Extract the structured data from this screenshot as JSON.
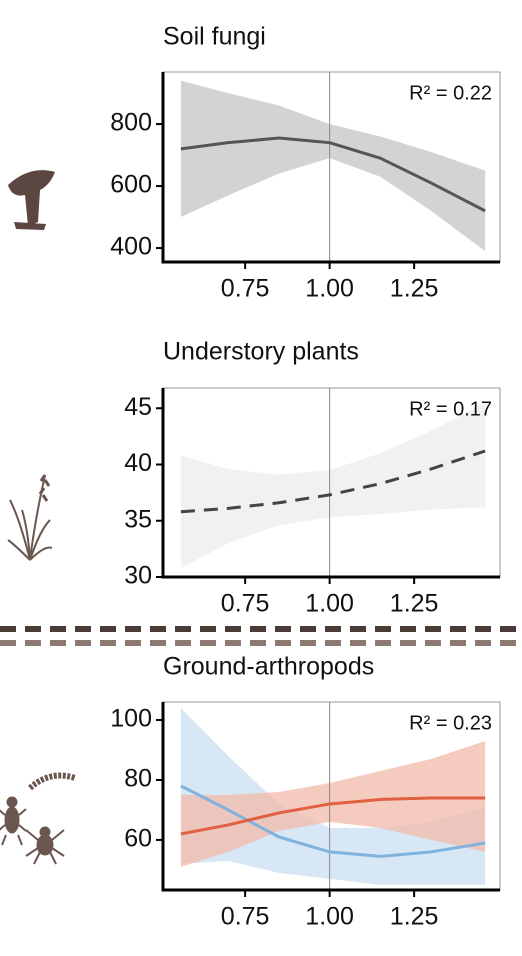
{
  "chart_data": [
    {
      "type": "line",
      "title": "Soil fungi",
      "annotation": "R² = 0.22",
      "vline": 1,
      "x": [
        0.56,
        0.7,
        0.85,
        1.0,
        1.15,
        1.3,
        1.46
      ],
      "xlim": [
        0.507,
        1.504
      ],
      "xticks": [
        0.75,
        {
          "value": 1,
          "label": "1.00"
        },
        1.25
      ],
      "ylim": [
        355,
        968
      ],
      "yticks": [
        400,
        600,
        800
      ],
      "series": [
        {
          "color": "#555555",
          "band_color": "#c4c4c4",
          "dash": false,
          "values": [
            720,
            740,
            755,
            740,
            690,
            610,
            520
          ],
          "lower": [
            500,
            570,
            640,
            690,
            630,
            520,
            390
          ],
          "upper": [
            940,
            900,
            860,
            800,
            760,
            710,
            650
          ]
        }
      ]
    },
    {
      "type": "line",
      "title": "Understory plants",
      "annotation": "R² = 0.17",
      "vline": 1,
      "x": [
        0.56,
        0.7,
        0.85,
        1.0,
        1.15,
        1.3,
        1.46
      ],
      "xlim": [
        0.507,
        1.504
      ],
      "xticks": [
        0.75,
        {
          "value": 1,
          "label": "1.00"
        },
        1.25
      ],
      "ylim": [
        30,
        46.8
      ],
      "yticks": [
        30,
        35,
        40,
        45
      ],
      "series": [
        {
          "color": "#444444",
          "band_color": "#ececec",
          "dash": true,
          "values": [
            35.8,
            36.1,
            36.6,
            37.3,
            38.3,
            39.6,
            41.2
          ],
          "lower": [
            30.8,
            33,
            34.6,
            35.3,
            35.6,
            36,
            36.2
          ],
          "upper": [
            40.8,
            39.6,
            39.1,
            39.5,
            41,
            43,
            45.5
          ]
        }
      ]
    },
    {
      "type": "line",
      "title": "Ground-arthropods",
      "annotation": "R² = 0.23",
      "vline": 1,
      "x": [
        0.56,
        0.7,
        0.85,
        1.0,
        1.15,
        1.3,
        1.46
      ],
      "xlim": [
        0.507,
        1.504
      ],
      "xticks": [
        0.75,
        {
          "value": 1,
          "label": "1.00"
        },
        1.25
      ],
      "ylim": [
        43.3,
        106
      ],
      "yticks": [
        60,
        80,
        100
      ],
      "series": [
        {
          "color": "#7fb2dd",
          "band_color": "#c9dff2",
          "dash": false,
          "values": [
            78,
            70,
            61,
            56,
            54.5,
            56,
            59
          ],
          "lower": [
            52,
            53,
            49,
            47,
            45,
            45,
            45
          ],
          "upper": [
            104,
            88,
            72,
            64,
            64,
            66,
            71
          ]
        },
        {
          "color": "#e0603f",
          "band_color": "#f3b9a9",
          "dash": false,
          "values": [
            62,
            65,
            69,
            72,
            73.5,
            74,
            74
          ],
          "lower": [
            51,
            56,
            63,
            66,
            64,
            60,
            56
          ],
          "upper": [
            75,
            75,
            76,
            79,
            83,
            87,
            93
          ]
        }
      ]
    }
  ]
}
